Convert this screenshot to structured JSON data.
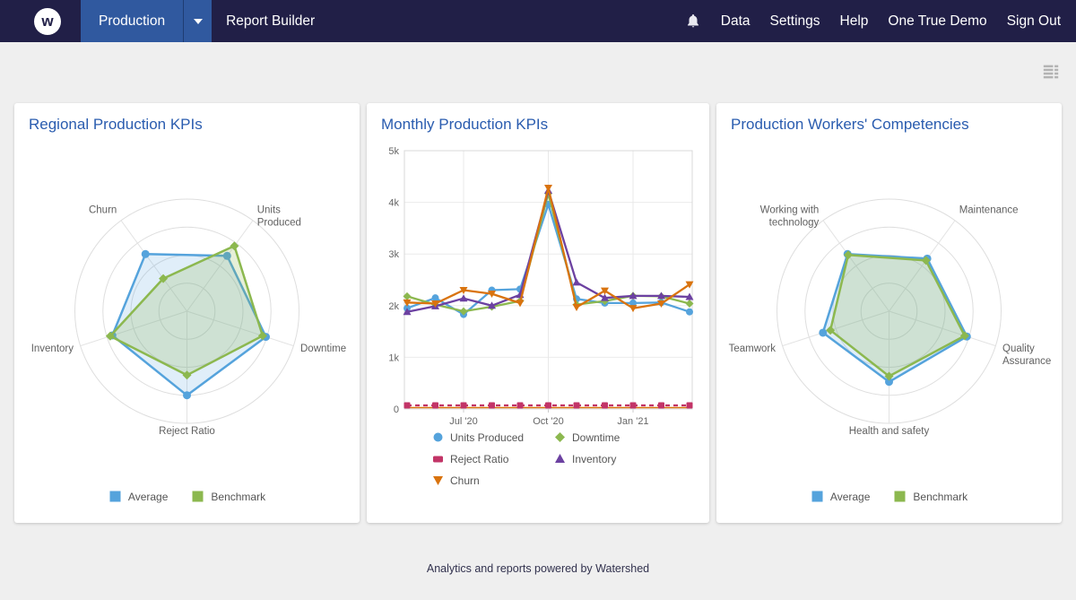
{
  "navbar": {
    "logo_letter": "w",
    "product_menu": {
      "label": "Production"
    },
    "report_builder_label": "Report Builder",
    "right_items": [
      "Data",
      "Settings",
      "Help",
      "One True Demo",
      "Sign Out"
    ]
  },
  "footer": {
    "text": "Analytics and reports powered by Watershed"
  },
  "colors": {
    "navbar_bg": "#211F47",
    "active_menu_bg": "#30599F",
    "card_title": "#2A5CAF",
    "page_bg": "#EFEFEF",
    "series_blue": "#55A3DC",
    "series_green": "#8CB84F",
    "series_pink": "#C23467",
    "series_purple": "#6C41A1",
    "series_orange": "#D9730E"
  },
  "chart_data": [
    {
      "type": "radar",
      "title": "Regional Production KPIs",
      "axes": [
        "Units Produced",
        "Downtime",
        "Reject Ratio",
        "Inventory",
        "Churn"
      ],
      "axes_display": [
        [
          "Units",
          "Produced"
        ],
        [
          "Downtime"
        ],
        [
          "Reject Ratio"
        ],
        [
          "Inventory"
        ],
        [
          "Churn"
        ]
      ],
      "scale_max": 100,
      "rings": 4,
      "legend_position": "bottom",
      "series": [
        {
          "name": "Average",
          "color": "#55A3DC",
          "marker": "circle",
          "values": [
            61,
            74,
            75,
            70,
            63
          ]
        },
        {
          "name": "Benchmark",
          "color": "#8CB84F",
          "marker": "diamond",
          "values": [
            72,
            71,
            57,
            72,
            36
          ]
        }
      ]
    },
    {
      "type": "line",
      "title": "Monthly Production KPIs",
      "x": [
        "May '20",
        "Jun '20",
        "Jul '20",
        "Aug '20",
        "Sep '20",
        "Oct '20",
        "Nov '20",
        "Dec '20",
        "Jan '21",
        "Feb '21",
        "Mar '21"
      ],
      "x_ticks": [
        {
          "index": 2,
          "label": "Jul '20"
        },
        {
          "index": 5,
          "label": "Oct '20"
        },
        {
          "index": 8,
          "label": "Jan '21"
        }
      ],
      "ylim": [
        0,
        5000
      ],
      "yticks": [
        "0",
        "1k",
        "2k",
        "3k",
        "4k",
        "5k"
      ],
      "grid": true,
      "legend_position": "bottom",
      "series": [
        {
          "name": "Units Produced",
          "color": "#55A3DC",
          "marker": "circle",
          "values": [
            1950,
            2150,
            1830,
            2300,
            2320,
            3960,
            2130,
            2050,
            2050,
            2060,
            1880
          ]
        },
        {
          "name": "Downtime",
          "color": "#8CB84F",
          "marker": "diamond",
          "values": [
            2180,
            2020,
            1890,
            1980,
            2090,
            4170,
            2020,
            2090,
            2190,
            2180,
            2040
          ]
        },
        {
          "name": "Reject Ratio",
          "color": "#C23467",
          "marker": "square",
          "dashed": true,
          "underlay_color": "#D9730E",
          "values": [
            70,
            70,
            70,
            70,
            70,
            70,
            70,
            70,
            70,
            70,
            70
          ]
        },
        {
          "name": "Inventory",
          "color": "#6C41A1",
          "marker": "triangle-up",
          "values": [
            1880,
            1990,
            2140,
            2000,
            2210,
            4230,
            2450,
            2150,
            2190,
            2190,
            2170
          ]
        },
        {
          "name": "Churn",
          "color": "#D9730E",
          "marker": "triangle-down",
          "values": [
            2060,
            2040,
            2300,
            2230,
            2050,
            4280,
            1970,
            2290,
            1950,
            2040,
            2410
          ]
        }
      ],
      "legend_order_columns": [
        [
          "Units Produced",
          "Reject Ratio",
          "Churn"
        ],
        [
          "Downtime",
          "Inventory"
        ]
      ]
    },
    {
      "type": "radar",
      "title": "Production Workers' Competencies",
      "axes": [
        "Maintenance",
        "Quality Assurance",
        "Health and safety",
        "Teamwork",
        "Working with technology"
      ],
      "axes_display": [
        [
          "Maintenance"
        ],
        [
          "Quality",
          "Assurance"
        ],
        [
          "Health and safety"
        ],
        [
          "Teamwork"
        ],
        [
          "Working with",
          "technology"
        ]
      ],
      "scale_max": 100,
      "rings": 4,
      "legend_position": "bottom",
      "series": [
        {
          "name": "Average",
          "color": "#55A3DC",
          "marker": "circle",
          "values": [
            58,
            73,
            63,
            62,
            63
          ]
        },
        {
          "name": "Benchmark",
          "color": "#8CB84F",
          "marker": "diamond",
          "values": [
            56,
            71,
            58,
            55,
            62
          ]
        }
      ]
    }
  ]
}
